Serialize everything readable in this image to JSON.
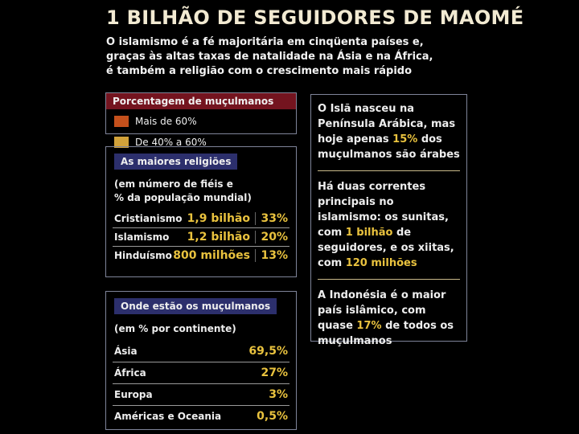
{
  "title": "1 BILHÃO DE SEGUIDORES DE MAOMÉ",
  "subtitle_lines": [
    "O islamismo é a fé majoritária em cinqüenta países e,",
    "graças às altas taxas de natalidade na Ásia e na África,",
    "é também a religião com o crescimento mais rápido"
  ],
  "legend": {
    "title": "Porcentagem de muçulmanos",
    "items": [
      {
        "label": "Mais de 60%",
        "color": "#c4501c"
      },
      {
        "label": "De 40% a 60%",
        "color": "#d2a23a"
      }
    ]
  },
  "religions": {
    "title": "As maiores religiões",
    "note_lines": [
      "(em número de fiéis e",
      "% da população mundial)"
    ],
    "rows": [
      [
        "Cristianismo",
        "1,9 bilhão",
        "33%"
      ],
      [
        "Islamismo",
        "1,2 bilhão",
        "20%"
      ],
      [
        "Hinduísmo",
        "800 milhões",
        "13%"
      ]
    ]
  },
  "continents": {
    "title": "Onde estão os muçulmanos",
    "note": "(em % por continente)",
    "rows": [
      [
        "Ásia",
        "69,5%"
      ],
      [
        "África",
        "27%"
      ],
      [
        "Europa",
        "3%"
      ],
      [
        "Américas e Oceania",
        "0,5%"
      ]
    ]
  },
  "facts": [
    [
      {
        "text": "O Islã nasceu na Península Arábica, mas hoje apenas "
      },
      {
        "text": "15%",
        "highlight": true
      },
      {
        "text": " dos muçulmanos são árabes"
      }
    ],
    [
      {
        "text": "Há duas correntes principais no islamismo: os sunitas, com "
      },
      {
        "text": "1 bilhão",
        "highlight": true
      },
      {
        "text": " de seguidores, e os xiitas, com "
      },
      {
        "text": "120 milhões",
        "highlight": true
      }
    ],
    [
      {
        "text": "A Indonésia é o maior país islâmico, com quase "
      },
      {
        "text": "17%",
        "highlight": true
      },
      {
        "text": " de todos os muçulmanos"
      }
    ]
  ]
}
